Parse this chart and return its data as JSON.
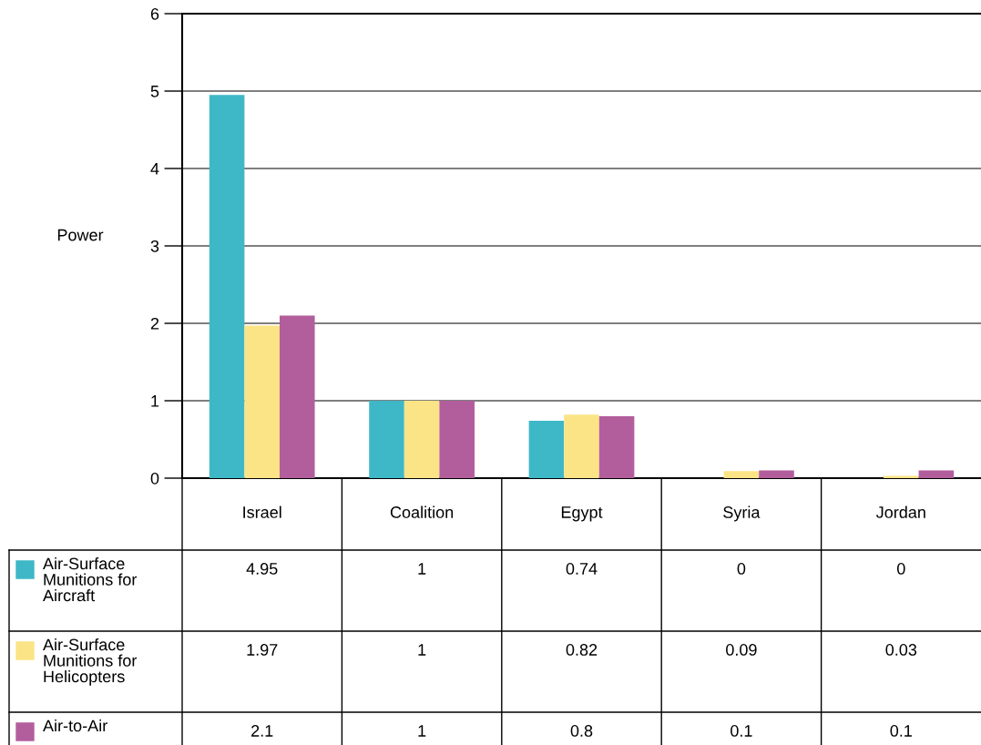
{
  "chart_data": {
    "type": "bar",
    "ylabel": "Power",
    "categories": [
      "Israel",
      "Coalition",
      "Egypt",
      "Syria",
      "Jordan"
    ],
    "series": [
      {
        "name": "Air-Surface Munitions for Aircraft",
        "color": "#3eb8c7",
        "values": [
          4.95,
          1,
          0.74,
          0,
          0
        ]
      },
      {
        "name": "Air-Surface Munitions for Helicopters",
        "color": "#fbe486",
        "values": [
          1.97,
          1,
          0.82,
          0.09,
          0.03
        ]
      },
      {
        "name": "Air-to-Air",
        "color": "#b35e9c",
        "values": [
          2.1,
          1,
          0.8,
          0.1,
          0.1
        ]
      }
    ],
    "ylim": [
      0,
      6
    ],
    "yticks": [
      0,
      1,
      2,
      3,
      4,
      5,
      6
    ],
    "grid": "y",
    "legend": "bottom",
    "data_labels": true
  }
}
